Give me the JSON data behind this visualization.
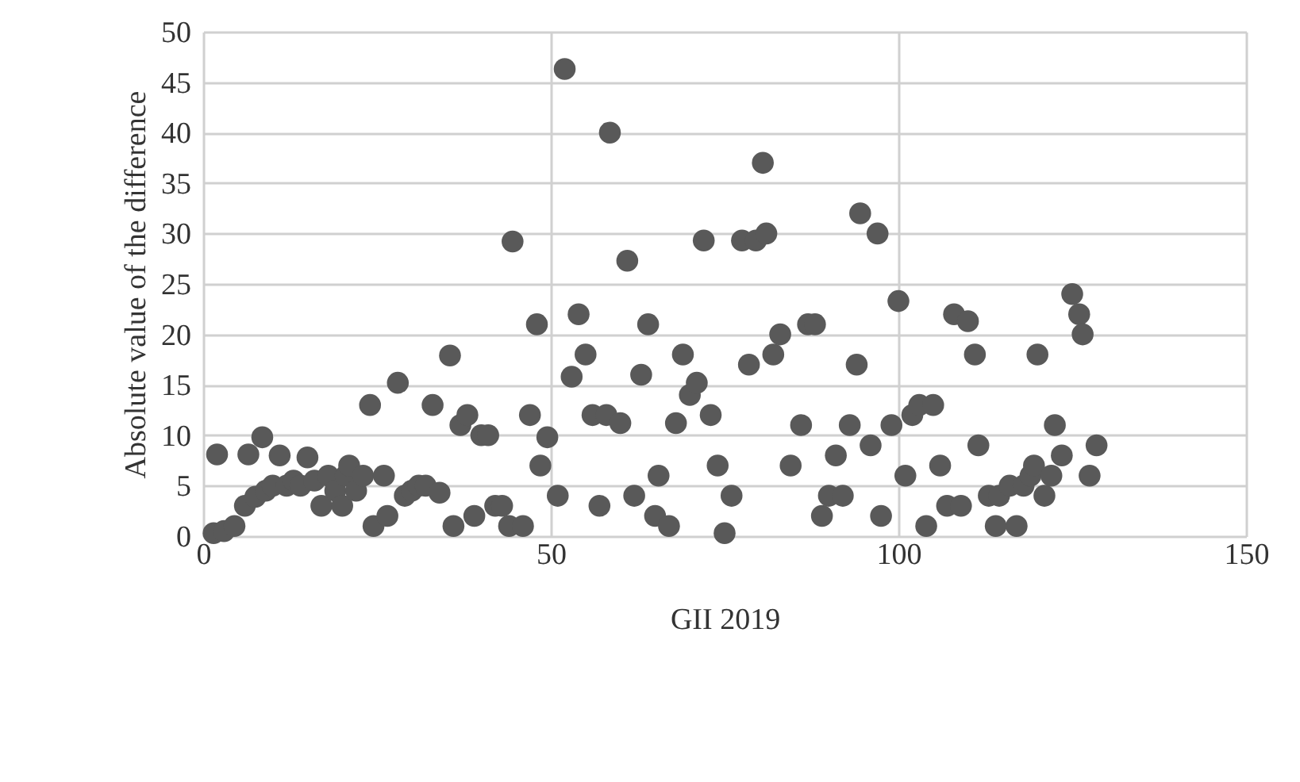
{
  "chart_data": {
    "type": "scatter",
    "xlabel": "GII 2019",
    "ylabel": "Absolute value of the difference",
    "xlim": [
      0,
      150
    ],
    "xticks": [
      0,
      50,
      100,
      150
    ],
    "ylim": [
      0,
      50
    ],
    "yticks": [
      0,
      5,
      10,
      15,
      20,
      25,
      30,
      35,
      40,
      45,
      50
    ],
    "grid": true,
    "marker": "circle",
    "series": [
      {
        "color": "#595959",
        "x": [
          1.5,
          2,
          3,
          4.5,
          6,
          6.5,
          7.5,
          8.5,
          9,
          10,
          11,
          12,
          13,
          14,
          15,
          16,
          17,
          18,
          19,
          20,
          20.5,
          21,
          22,
          23,
          24,
          24.5,
          26,
          26.5,
          28,
          29,
          30,
          31,
          32,
          33,
          34,
          35.5,
          36,
          37,
          38,
          39,
          40,
          41,
          42,
          43,
          44,
          44.5,
          46,
          47,
          48,
          48.5,
          49.5,
          51,
          52,
          53,
          54,
          55,
          56,
          57,
          58,
          58.5,
          60,
          61,
          62,
          63,
          64,
          65,
          65.5,
          67,
          68,
          69,
          70,
          71,
          72,
          73,
          74,
          75,
          76,
          77.5,
          78.5,
          79.5,
          80.5,
          81,
          82,
          83,
          84.5,
          86,
          87,
          88,
          89,
          90,
          91,
          92,
          93,
          94,
          94.5,
          96,
          97,
          97.5,
          99,
          100,
          101,
          102,
          103,
          104,
          105,
          106,
          107,
          108,
          109,
          110,
          111,
          111.5,
          113,
          114,
          114.5,
          116,
          117,
          118,
          119,
          119.5,
          120,
          121,
          122,
          122.5,
          123.5,
          125,
          126,
          126.5,
          127.5,
          128.5
        ],
        "values": [
          0.3,
          8.1,
          0.5,
          1,
          3,
          8.1,
          3.9,
          9.8,
          4.5,
          5,
          8,
          5,
          5.5,
          5,
          7.8,
          5.5,
          3,
          6,
          4.5,
          3,
          6,
          7,
          4.5,
          6,
          13,
          1,
          6,
          2,
          15.2,
          4,
          4.5,
          5,
          5,
          13,
          4.3,
          17.9,
          1,
          11,
          12,
          2,
          10,
          10,
          3,
          3,
          1,
          29.2,
          1,
          12,
          21,
          7,
          9.8,
          4,
          46.3,
          15.8,
          22,
          18,
          12,
          3,
          12,
          40,
          11.2,
          27.3,
          4,
          16,
          21,
          2,
          6,
          1,
          11.2,
          18,
          14,
          15.2,
          29.3,
          12,
          7,
          0.3,
          4,
          29.3,
          17,
          29.3,
          37,
          30,
          18,
          20,
          7,
          11,
          21,
          21,
          2,
          4,
          8,
          4,
          11,
          17,
          32,
          9,
          30,
          2,
          11,
          23.3,
          6,
          12,
          13,
          1,
          13,
          7,
          3,
          22,
          3,
          21.3,
          18,
          9,
          4,
          1,
          4,
          5,
          1,
          5,
          6,
          7,
          18,
          4,
          6,
          11,
          8,
          24,
          22,
          20,
          6,
          9
        ]
      }
    ]
  }
}
